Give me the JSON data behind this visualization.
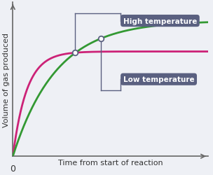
{
  "xlabel": "Time from start of reaction",
  "ylabel": "Volume of gas produced",
  "bg_color": "#eef0f5",
  "grid_color": "#ffffff",
  "high_temp_color": "#cc2277",
  "low_temp_color": "#339933",
  "annotation_bg": "#5a6080",
  "annotation_text_color": "#ffffff",
  "high_temp_label": "High temperature",
  "low_temp_label": "Low temperature",
  "xlim": [
    0,
    10
  ],
  "ylim": [
    0,
    10
  ],
  "ht_plateau": 6.8,
  "ht_k": 1.4,
  "lt_plateau": 8.8,
  "lt_k": 0.45,
  "high_dot_x": 3.2,
  "low_dot_x": 4.5,
  "conn_color": "#5a6080",
  "spine_color": "#666666",
  "label_color": "#333333",
  "label_fontsize": 8,
  "zero_fontsize": 9
}
